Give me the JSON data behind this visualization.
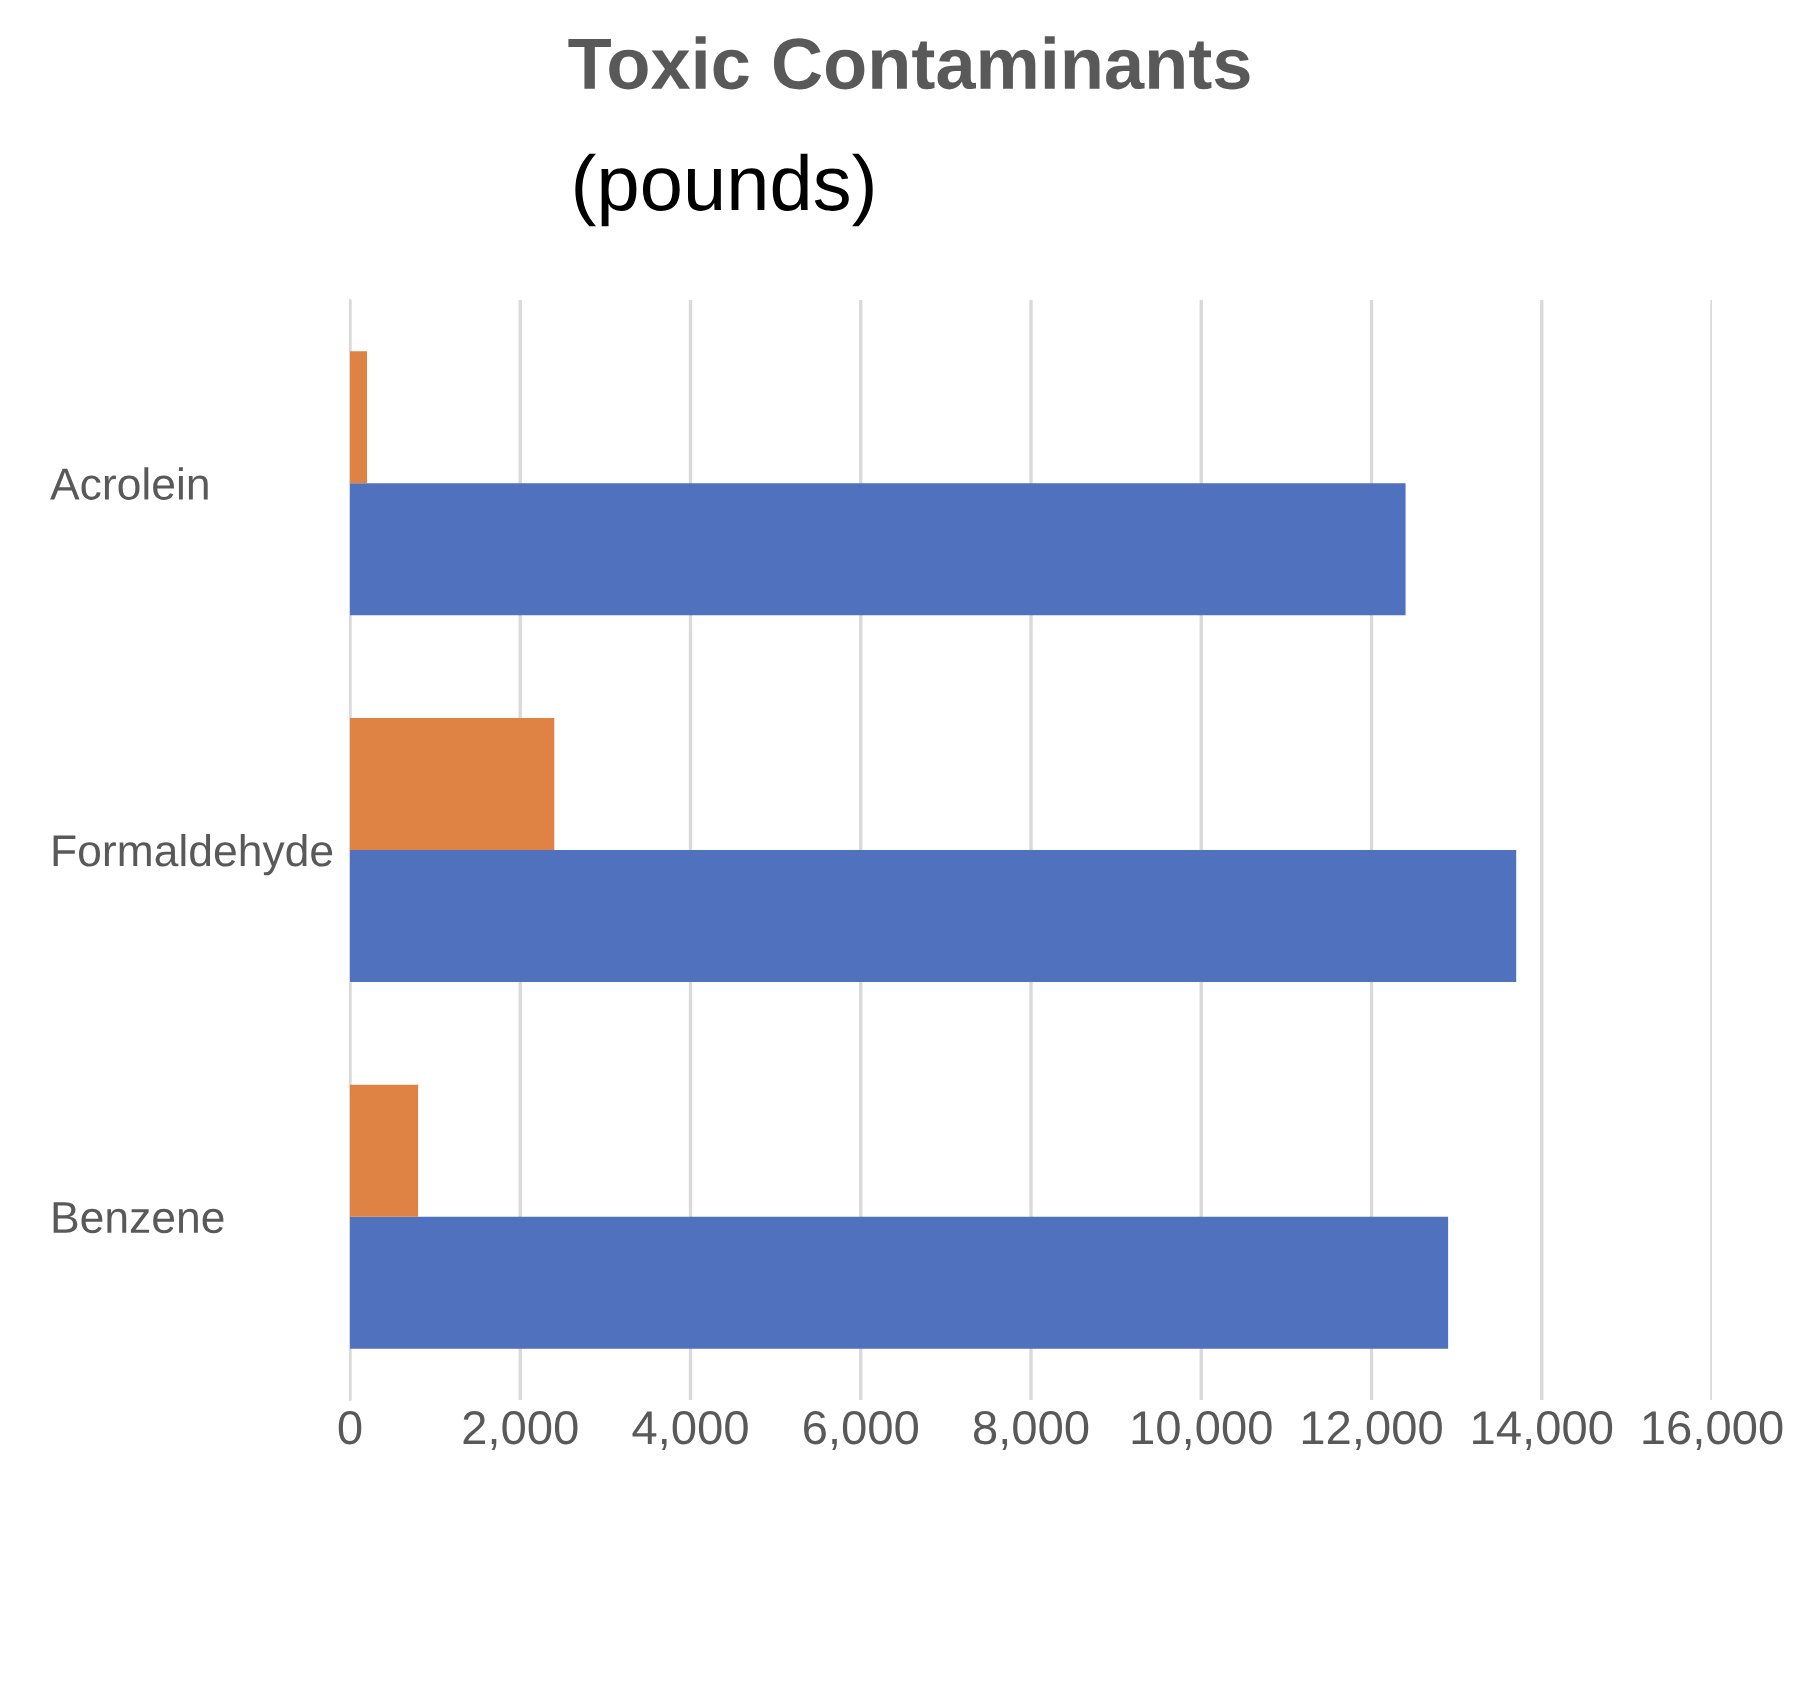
{
  "chart_data": {
    "type": "bar",
    "orientation": "horizontal",
    "title": "Toxic Contaminants",
    "subtitle": "(pounds)",
    "categories": [
      "Acrolein",
      "Formaldehyde",
      "Benzene"
    ],
    "series": [
      {
        "color": "#4f71be",
        "values": [
          12400,
          13700,
          12900
        ]
      },
      {
        "color": "#de8344",
        "values": [
          200,
          2400,
          800
        ]
      }
    ],
    "xlim": [
      0,
      16000
    ],
    "xticks": [
      {
        "value": 0,
        "label": "0"
      },
      {
        "value": 2000,
        "label": "2,000"
      },
      {
        "value": 4000,
        "label": "4,000"
      },
      {
        "value": 6000,
        "label": "6,000"
      },
      {
        "value": 8000,
        "label": "8,000"
      },
      {
        "value": 10000,
        "label": "10,000"
      },
      {
        "value": 12000,
        "label": "12,000"
      },
      {
        "value": 14000,
        "label": "14,000"
      },
      {
        "value": 16000,
        "label": "16,000"
      }
    ],
    "grid": "x"
  }
}
